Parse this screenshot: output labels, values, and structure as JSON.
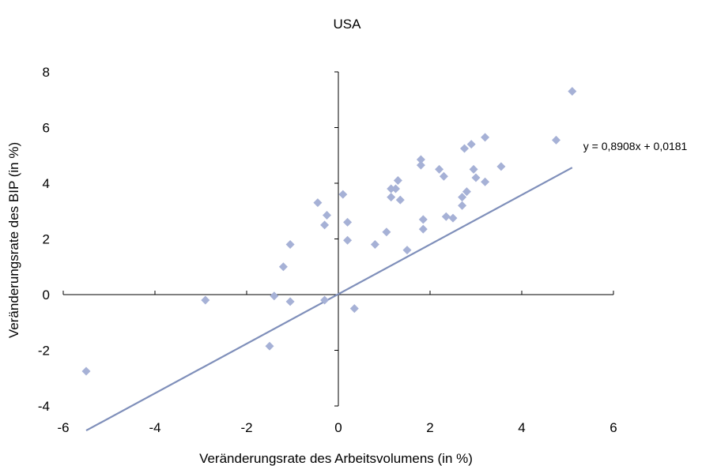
{
  "chart_data": {
    "type": "scatter",
    "title": "USA",
    "xlabel": "Veränderungsrate des Arbeitsvolumens (in %)",
    "ylabel": "Veränderungsrate des BIP (in %)",
    "xlim": [
      -6,
      6
    ],
    "ylim": [
      -4,
      8
    ],
    "xticks": [
      "-6",
      "-4",
      "-2",
      "0",
      "2",
      "4",
      "6"
    ],
    "yticks": [
      "-4",
      "-2",
      "0",
      "2",
      "4",
      "6",
      "8"
    ],
    "grid": false,
    "marker_color": "#a6b1d6",
    "trend_color": "#7f8fba",
    "trendline": {
      "slope": 0.8908,
      "intercept": 0.0181,
      "x_range": [
        -5.5,
        5.1
      ],
      "label": "y = 0,8908x + 0,0181"
    },
    "points": [
      {
        "x": -5.5,
        "y": -2.75
      },
      {
        "x": -2.9,
        "y": -0.2
      },
      {
        "x": -1.5,
        "y": -1.85
      },
      {
        "x": -1.4,
        "y": -0.05
      },
      {
        "x": -1.05,
        "y": 1.8
      },
      {
        "x": -1.05,
        "y": -0.25
      },
      {
        "x": -1.2,
        "y": 1.0
      },
      {
        "x": -0.45,
        "y": 3.3
      },
      {
        "x": -0.25,
        "y": 2.85
      },
      {
        "x": -0.3,
        "y": 2.5
      },
      {
        "x": -0.3,
        "y": -0.2
      },
      {
        "x": 0.1,
        "y": 3.6
      },
      {
        "x": 0.2,
        "y": 2.6
      },
      {
        "x": 0.2,
        "y": 1.95
      },
      {
        "x": 0.35,
        "y": -0.5
      },
      {
        "x": 0.8,
        "y": 1.8
      },
      {
        "x": 1.05,
        "y": 2.25
      },
      {
        "x": 1.15,
        "y": 3.8
      },
      {
        "x": 1.15,
        "y": 3.5
      },
      {
        "x": 1.25,
        "y": 3.8
      },
      {
        "x": 1.3,
        "y": 4.1
      },
      {
        "x": 1.35,
        "y": 3.4
      },
      {
        "x": 1.5,
        "y": 1.6
      },
      {
        "x": 1.8,
        "y": 4.85
      },
      {
        "x": 1.8,
        "y": 4.65
      },
      {
        "x": 1.85,
        "y": 2.7
      },
      {
        "x": 1.85,
        "y": 2.35
      },
      {
        "x": 2.2,
        "y": 4.5
      },
      {
        "x": 2.3,
        "y": 4.25
      },
      {
        "x": 2.35,
        "y": 2.8
      },
      {
        "x": 2.5,
        "y": 2.75
      },
      {
        "x": 2.7,
        "y": 3.5
      },
      {
        "x": 2.7,
        "y": 3.2
      },
      {
        "x": 2.75,
        "y": 5.25
      },
      {
        "x": 2.8,
        "y": 3.7
      },
      {
        "x": 2.9,
        "y": 5.4
      },
      {
        "x": 2.95,
        "y": 4.5
      },
      {
        "x": 3.0,
        "y": 4.2
      },
      {
        "x": 3.2,
        "y": 5.65
      },
      {
        "x": 3.2,
        "y": 4.05
      },
      {
        "x": 3.55,
        "y": 4.6
      },
      {
        "x": 4.75,
        "y": 5.55
      },
      {
        "x": 5.1,
        "y": 7.3
      }
    ]
  }
}
